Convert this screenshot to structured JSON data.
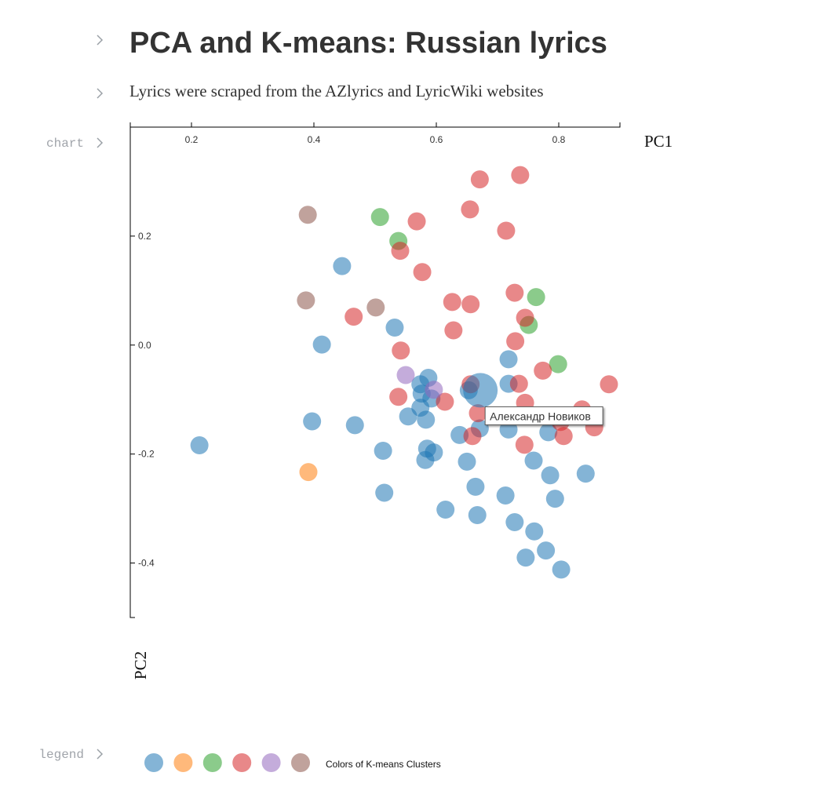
{
  "gutter": {
    "chart": "chart",
    "legend": "legend"
  },
  "header": {
    "title": "PCA and K-means: Russian lyrics",
    "subtitle": "Lyrics were scraped from the AZlyrics and LyricWiki websites"
  },
  "chart_data": {
    "type": "scatter",
    "xlabel": "PC1",
    "ylabel": "PC2",
    "xlim": [
      0.1,
      0.9
    ],
    "xticks": [
      0.2,
      0.4,
      0.6,
      0.8
    ],
    "ylim": [
      -0.5,
      0.4
    ],
    "yticks": [
      0.2,
      {
        "value": 0,
        "label": "0.0"
      },
      -0.2,
      -0.4
    ],
    "legend_title": "Colors of K-means Clusters",
    "series": [
      {
        "color": "#1f77b4",
        "x": [
          0.213,
          0.446,
          0.413,
          0.532,
          0.397,
          0.467,
          0.513,
          0.515,
          0.554,
          0.574,
          0.576,
          0.587,
          0.592,
          0.574,
          0.583,
          0.585,
          0.596,
          0.582,
          0.615,
          0.638,
          0.65,
          0.653,
          0.664,
          0.667,
          0.671,
          0.718,
          0.718,
          0.718,
          0.713,
          0.728,
          0.759,
          0.76,
          0.783,
          0.786,
          0.794,
          0.779,
          0.746,
          0.804,
          0.844
        ],
        "values": [
          -0.184,
          0.145,
          0.001,
          0.032,
          -0.14,
          -0.147,
          -0.194,
          -0.271,
          -0.131,
          -0.072,
          -0.089,
          -0.06,
          -0.098,
          -0.115,
          -0.137,
          -0.19,
          -0.197,
          -0.211,
          -0.302,
          -0.165,
          -0.214,
          -0.083,
          -0.26,
          -0.312,
          -0.153,
          -0.026,
          -0.071,
          -0.155,
          -0.276,
          -0.325,
          -0.212,
          -0.342,
          -0.16,
          -0.239,
          -0.282,
          -0.377,
          -0.39,
          -0.412,
          -0.236
        ]
      },
      {
        "color": "#ff7f0e",
        "x": [
          0.391
        ],
        "values": [
          -0.233
        ]
      },
      {
        "color": "#2ca02c",
        "x": [
          0.508,
          0.538,
          0.763,
          0.751,
          0.799
        ],
        "values": [
          0.235,
          0.191,
          0.088,
          0.037,
          -0.035
        ]
      },
      {
        "color": "#d62728",
        "x": [
          0.671,
          0.737,
          0.655,
          0.568,
          0.714,
          0.541,
          0.577,
          0.465,
          0.626,
          0.656,
          0.728,
          0.745,
          0.628,
          0.729,
          0.542,
          0.774,
          0.735,
          0.538,
          0.614,
          0.656,
          0.668,
          0.745,
          0.659,
          0.744,
          0.808,
          0.838,
          0.858,
          0.882,
          0.803
        ],
        "values": [
          0.304,
          0.312,
          0.249,
          0.227,
          0.21,
          0.173,
          0.134,
          0.052,
          0.079,
          0.075,
          0.096,
          0.05,
          0.027,
          0.007,
          -0.01,
          -0.047,
          -0.071,
          -0.095,
          -0.104,
          -0.072,
          -0.125,
          -0.106,
          -0.167,
          -0.183,
          -0.167,
          -0.118,
          -0.151,
          -0.072,
          -0.141
        ]
      },
      {
        "color": "#9467bd",
        "x": [
          0.55,
          0.596
        ],
        "values": [
          -0.055,
          -0.082
        ]
      },
      {
        "color": "#8c564b",
        "x": [
          0.39,
          0.387,
          0.501
        ],
        "values": [
          0.239,
          0.082,
          0.069
        ]
      }
    ],
    "tooltip": {
      "text": "Александр Новиков",
      "x": 0.672,
      "y": -0.083
    }
  }
}
